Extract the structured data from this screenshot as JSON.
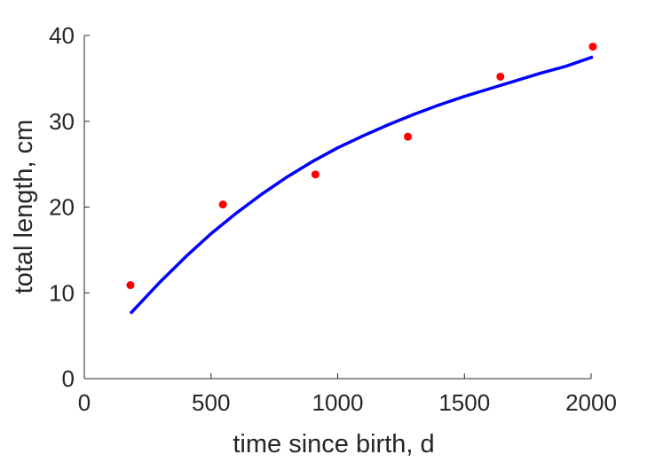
{
  "chart_data": {
    "type": "scatter",
    "title": "",
    "xlabel": "time since birth, d",
    "ylabel": "total length, cm",
    "xlim": [
      0,
      2000
    ],
    "ylim": [
      0,
      40
    ],
    "xticks": [
      0,
      500,
      1000,
      1500,
      2000
    ],
    "yticks": [
      0,
      10,
      20,
      30,
      40
    ],
    "grid": false,
    "legend": "none",
    "series": [
      {
        "kind": "points",
        "color": "#ff0000",
        "x": [
          182,
          547,
          912,
          1277,
          1642,
          2007
        ],
        "y": [
          10.9,
          20.3,
          23.8,
          28.2,
          35.2,
          38.7
        ]
      },
      {
        "kind": "curve",
        "color": "#0000ff",
        "x": [
          182,
          300,
          400,
          500,
          600,
          700,
          800,
          900,
          1000,
          1100,
          1200,
          1300,
          1400,
          1500,
          1600,
          1700,
          1800,
          1900,
          2007
        ],
        "y": [
          7.6,
          11.3,
          14.2,
          16.9,
          19.3,
          21.5,
          23.5,
          25.3,
          26.9,
          28.3,
          29.6,
          30.8,
          31.9,
          32.9,
          33.8,
          34.7,
          35.6,
          36.4,
          37.5
        ]
      }
    ]
  }
}
